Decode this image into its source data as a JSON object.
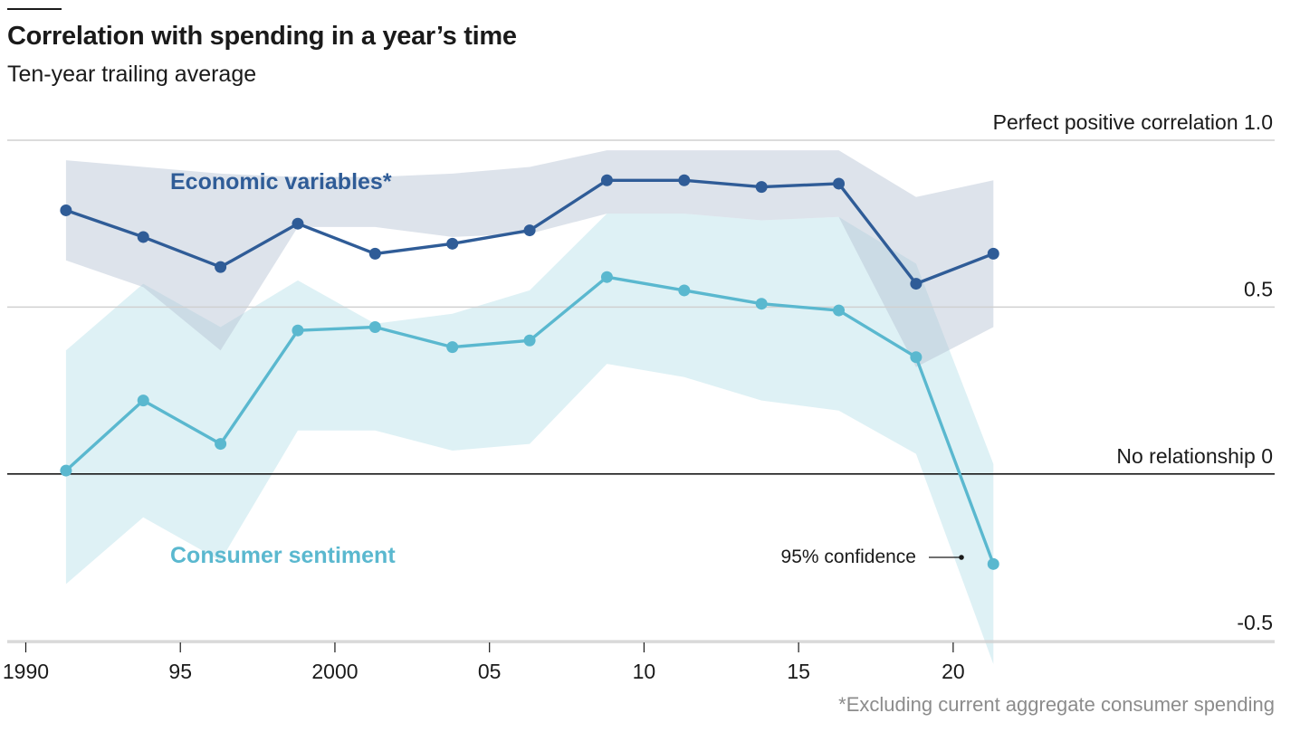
{
  "title": "Correlation with spending in a year’s time",
  "subtitle": "Ten-year trailing average",
  "footnote": "*Excluding current aggregate consumer spending",
  "annotation": "95% confidence",
  "colors": {
    "economic_line": "#2f5c97",
    "economic_band": "#dde3ec",
    "sentiment_line": "#5ab8cf",
    "sentiment_band": "#def1f5",
    "overlap_band": "#c6dde7",
    "grid": "#d0d0d0",
    "zero_line": "#1a1a1a"
  },
  "chart_data": {
    "type": "line",
    "title": "Correlation with spending in a year’s time",
    "subtitle": "Ten-year trailing average",
    "x_ticks": [
      {
        "value": 1990,
        "label": "1990"
      },
      {
        "value": 1995,
        "label": "95"
      },
      {
        "value": 2000,
        "label": "2000"
      },
      {
        "value": 2005,
        "label": "05"
      },
      {
        "value": 2010,
        "label": "10"
      },
      {
        "value": 2015,
        "label": "15"
      },
      {
        "value": 2020,
        "label": "20"
      }
    ],
    "y_ticks": [
      {
        "value": 1.0,
        "label": "Perfect positive correlation 1.0"
      },
      {
        "value": 0.5,
        "label": "0.5"
      },
      {
        "value": 0,
        "label": "No relationship 0"
      },
      {
        "value": -0.5,
        "label": "-0.5"
      }
    ],
    "xlim": [
      1989.4,
      2030.4
    ],
    "ylim": [
      -0.505,
      1.0
    ],
    "x": [
      1991.3,
      1993.8,
      1996.3,
      1998.8,
      2001.3,
      2003.8,
      2006.3,
      2008.8,
      2011.3,
      2013.8,
      2016.3,
      2018.8,
      2021.3
    ],
    "series": [
      {
        "name": "Economic variables*",
        "values": [
          0.79,
          0.71,
          0.62,
          0.75,
          0.66,
          0.69,
          0.73,
          0.88,
          0.88,
          0.86,
          0.87,
          0.57,
          0.66
        ],
        "upper": [
          0.94,
          0.92,
          0.9,
          0.89,
          0.89,
          0.9,
          0.92,
          0.97,
          0.97,
          0.97,
          0.97,
          0.83,
          0.88
        ],
        "lower": [
          0.64,
          0.56,
          0.37,
          0.74,
          0.74,
          0.71,
          0.72,
          0.78,
          0.78,
          0.76,
          0.77,
          0.32,
          0.44
        ]
      },
      {
        "name": "Consumer sentiment",
        "values": [
          0.01,
          0.22,
          0.09,
          0.43,
          0.44,
          0.38,
          0.4,
          0.59,
          0.55,
          0.51,
          0.49,
          0.35,
          -0.27
        ],
        "upper": [
          0.37,
          0.57,
          0.44,
          0.58,
          0.45,
          0.48,
          0.55,
          0.78,
          0.78,
          0.76,
          0.77,
          0.63,
          0.03
        ],
        "lower": [
          -0.33,
          -0.13,
          -0.26,
          0.13,
          0.13,
          0.07,
          0.09,
          0.33,
          0.29,
          0.22,
          0.19,
          0.06,
          -0.57
        ]
      }
    ]
  }
}
